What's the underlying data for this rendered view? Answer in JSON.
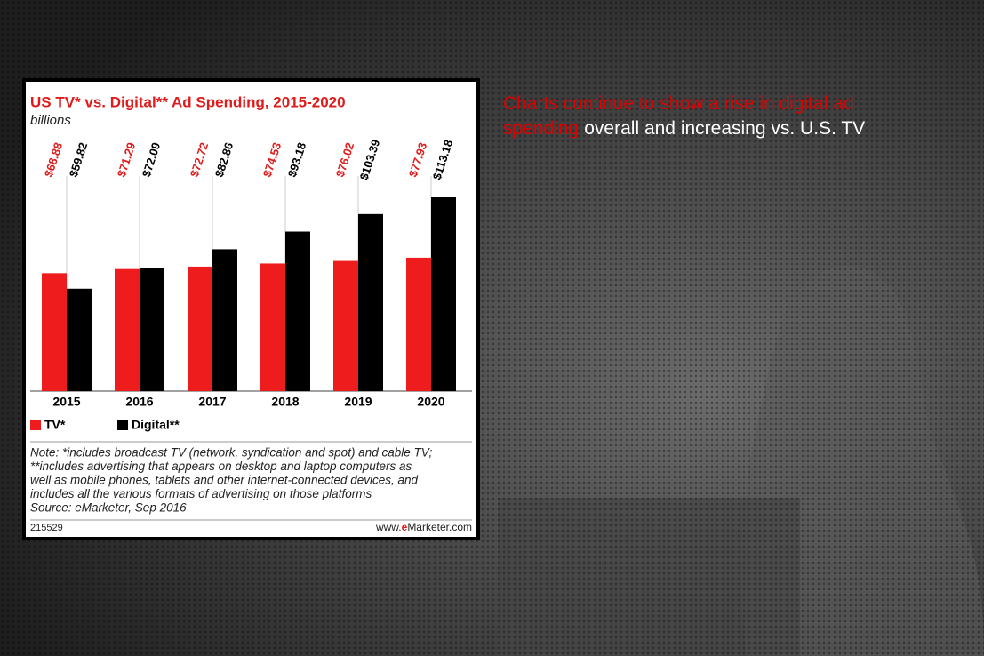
{
  "chart_data": {
    "type": "bar",
    "title": "US TV* vs. Digital** Ad Spending, 2015-2020",
    "subtitle": "billions",
    "categories": [
      "2015",
      "2016",
      "2017",
      "2018",
      "2019",
      "2020"
    ],
    "series": [
      {
        "name": "TV*",
        "color": "#ee1c1c",
        "values": [
          68.88,
          71.29,
          72.72,
          74.53,
          76.02,
          77.93
        ],
        "value_labels": [
          "$68.88",
          "$71.29",
          "$72.72",
          "$74.53",
          "$76.02",
          "$77.93"
        ]
      },
      {
        "name": "Digital**",
        "color": "#000000",
        "values": [
          59.82,
          72.09,
          82.86,
          93.18,
          103.39,
          113.18
        ],
        "value_labels": [
          "$59.82",
          "$72.09",
          "$82.86",
          "$93.18",
          "$103.39",
          "$113.18"
        ]
      }
    ],
    "notes": [
      "Note: *includes broadcast TV (network, syndication and spot) and cable TV;",
      "**includes advertising that appears on desktop and laptop computers as",
      "well as mobile phones, tablets and other internet-connected devices, and",
      "includes all the various formats of advertising on those platforms",
      "Source: eMarketer, Sep 2016"
    ],
    "chart_id": "215529",
    "source_site": [
      "www.",
      "e",
      "Marketer.com"
    ]
  },
  "slide": {
    "headline_highlight": "Charts continue to show a rise in digital ad spending",
    "headline_rest": "overall and increasing vs. U.S. TV"
  }
}
